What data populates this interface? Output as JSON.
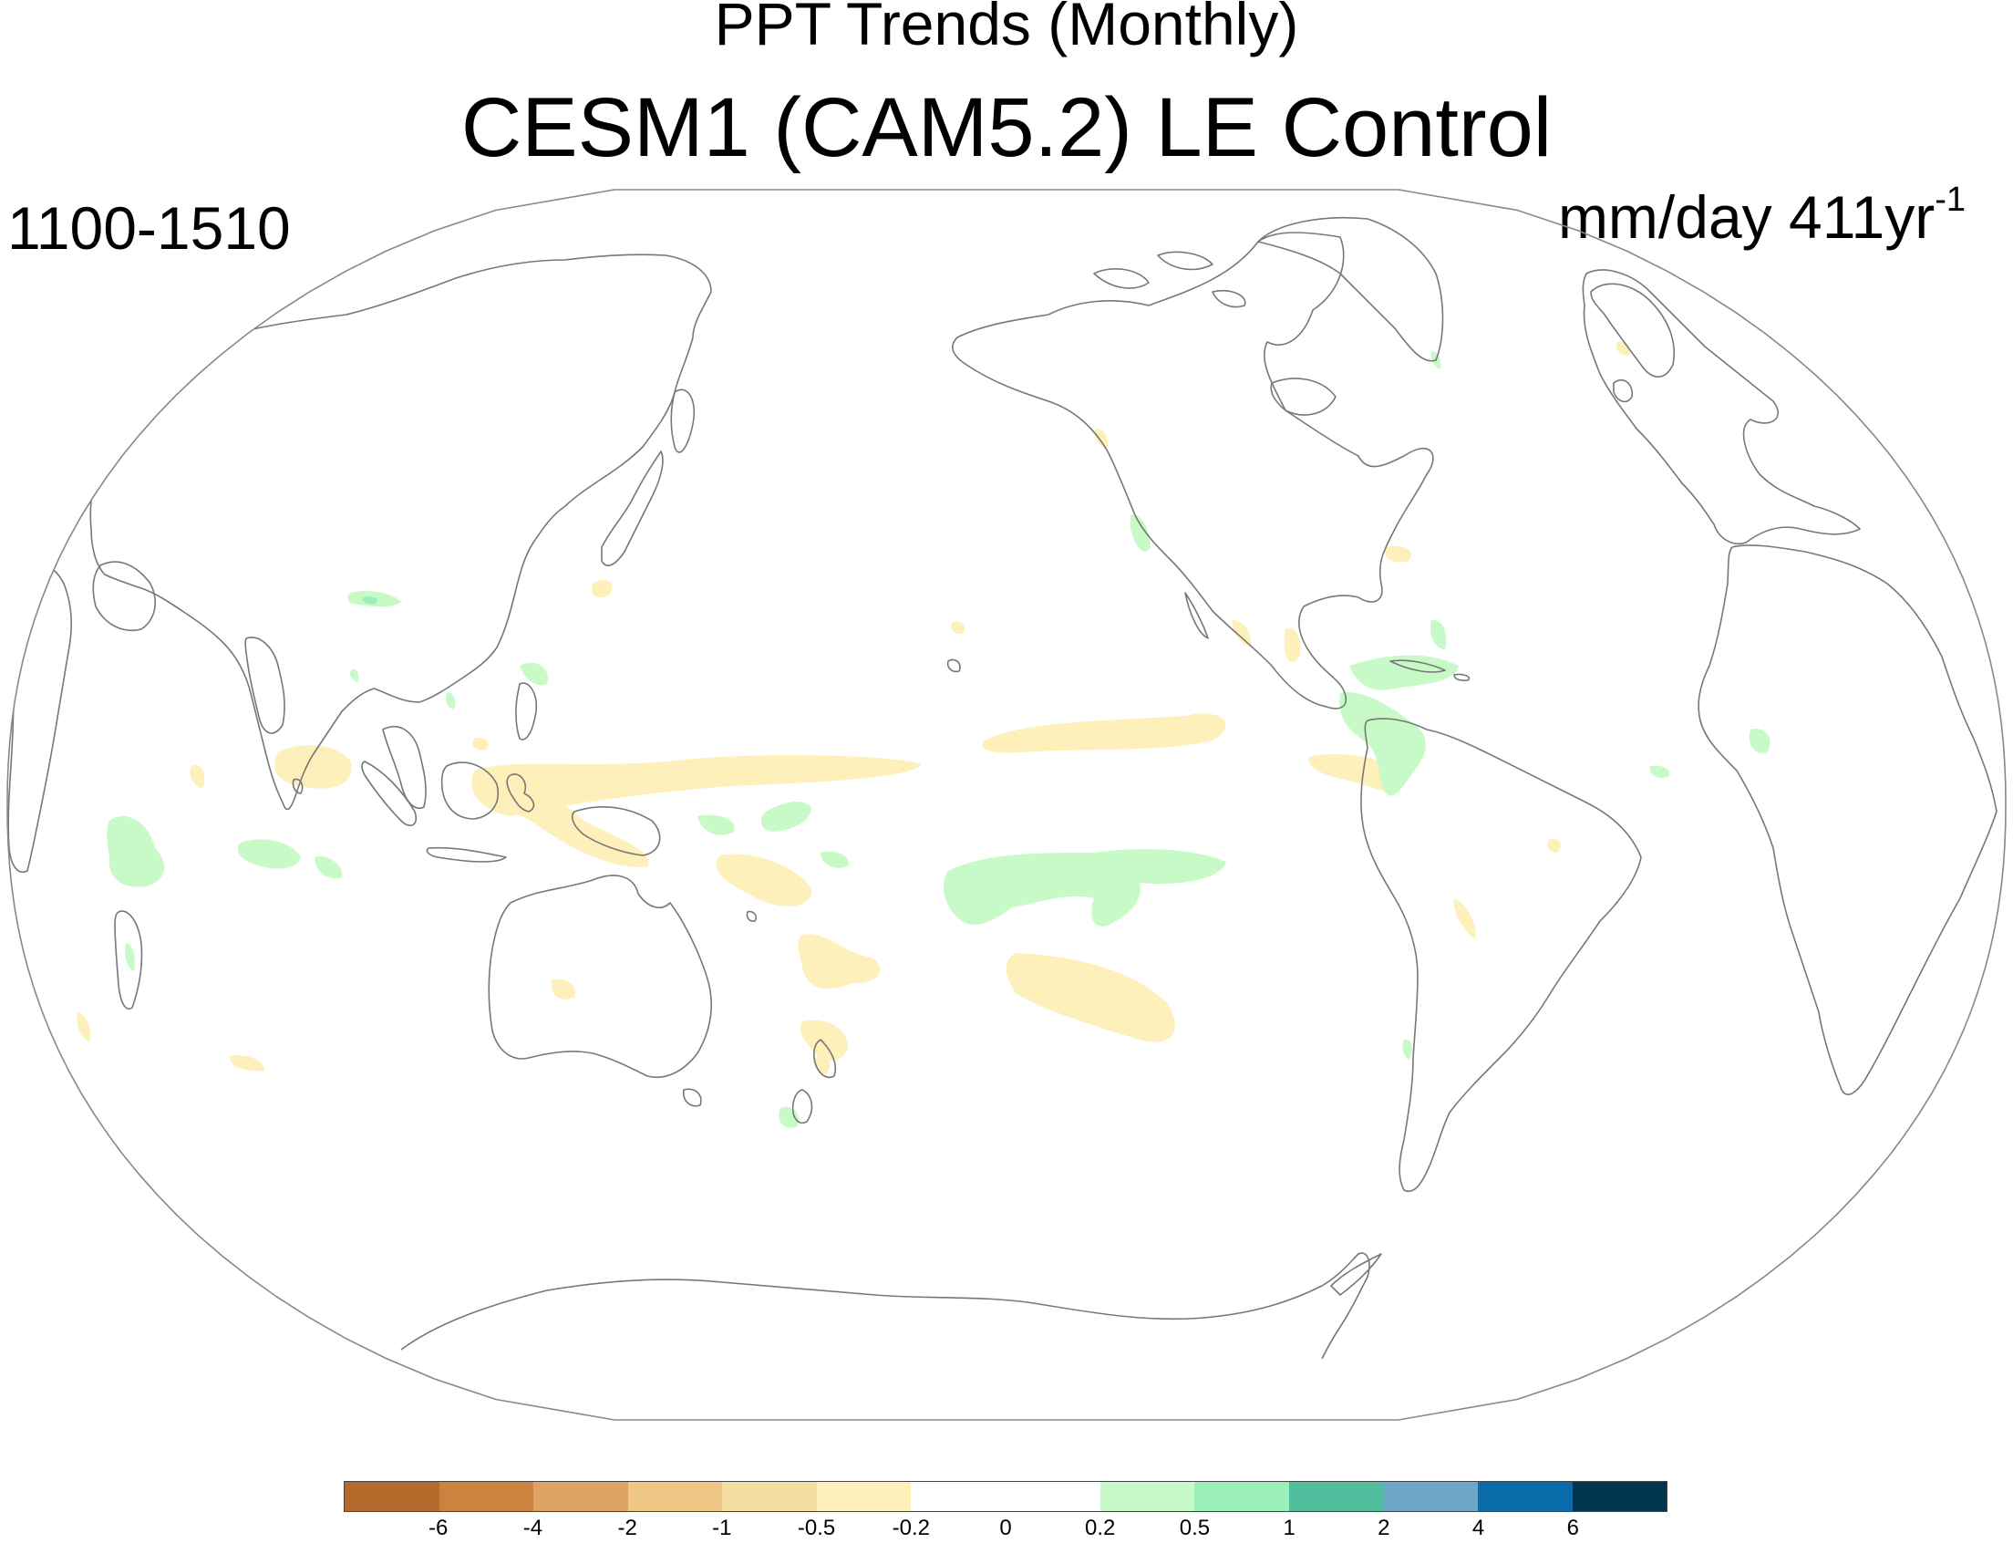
{
  "title_line1": "PPT Trends (Monthly)",
  "title_line2": "CESM1 (CAM5.2) LE Control",
  "period": "1100-1510",
  "units": {
    "base": "mm/day 411yr",
    "exponent": "-1"
  },
  "map": {
    "projection": "Robinson",
    "central_longitude_deg": 180,
    "coastline_color": "#777777",
    "anomaly_regions": [
      {
        "region": "central Pacific equatorial band",
        "category": "-0.5 to -0.2"
      },
      {
        "region": "western Pacific / maritime continent",
        "category": "-0.5 to -0.2"
      },
      {
        "region": "south Pacific convergence zone",
        "category": "-0.5 to -0.2"
      },
      {
        "region": "tropical Indian Ocean",
        "category": "0.2 to 0.5"
      },
      {
        "region": "south-central Pacific",
        "category": "0.2 to 0.5"
      },
      {
        "region": "Caribbean / Central America",
        "category": "0.2 to 0.5"
      },
      {
        "region": "South Atlantic west of Africa",
        "category": "0.2 to 0.5"
      }
    ]
  },
  "colorbar": {
    "colors": [
      "#b5692b",
      "#cc8340",
      "#dea263",
      "#efc785",
      "#f3de9f",
      "#fdf0bb",
      "#ffffff",
      "#ffffff",
      "#c8fac8",
      "#9af0b8",
      "#50be9c",
      "#6fa7c8",
      "#0a6cab",
      "#023650"
    ],
    "labels": [
      "-6",
      "-4",
      "-2",
      "-1",
      "-0.5",
      "-0.2",
      "0",
      "0.2",
      "0.5",
      "1",
      "2",
      "4",
      "6"
    ]
  }
}
